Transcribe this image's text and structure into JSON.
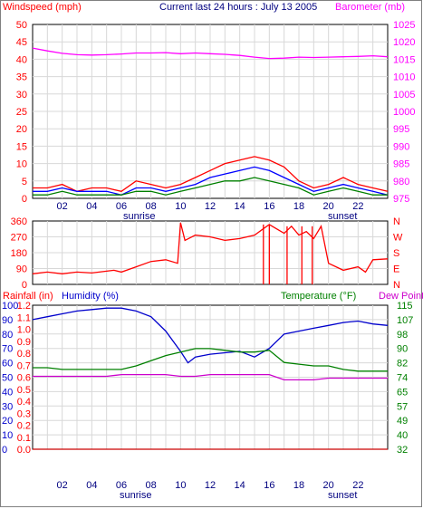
{
  "chart_data": [
    {
      "panel": "wind-barometer",
      "type": "line",
      "title": "Current last 24 hours : July 13 2005",
      "left_axis_label": "Windspeed (mph)",
      "right_axis_label": "Barometer (mb)",
      "left_ticks": [
        "0",
        "5",
        "10",
        "15",
        "20",
        "25",
        "30",
        "35",
        "40",
        "45",
        "50"
      ],
      "right_ticks": [
        "975",
        "980",
        "985",
        "990",
        "995",
        "1000",
        "1005",
        "1010",
        "1015",
        "1020",
        "1025"
      ],
      "ylim_left": [
        0,
        50
      ],
      "ylim_right": [
        975,
        1025
      ],
      "series": [
        {
          "name": "Windspeed (mph)",
          "axis": "left",
          "color": "#ff0000",
          "x": [
            0,
            1,
            2,
            3,
            4,
            5,
            6,
            7,
            8,
            9,
            10,
            11,
            12,
            13,
            14,
            15,
            16,
            17,
            18,
            19,
            20,
            21,
            22,
            23,
            24
          ],
          "values": [
            3,
            3,
            4,
            2,
            3,
            3,
            2,
            5,
            4,
            3,
            4,
            6,
            8,
            10,
            11,
            12,
            11,
            9,
            5,
            3,
            4,
            6,
            4,
            3,
            2
          ]
        },
        {
          "name": "Windspeed (mph)",
          "axis": "left",
          "color": "#0000ff",
          "x": [
            0,
            1,
            2,
            3,
            4,
            5,
            6,
            7,
            8,
            9,
            10,
            11,
            12,
            13,
            14,
            15,
            16,
            17,
            18,
            19,
            20,
            21,
            22,
            23,
            24
          ],
          "values": [
            2,
            2,
            3,
            2,
            2,
            2,
            1,
            3,
            3,
            2,
            3,
            4,
            6,
            7,
            8,
            9,
            8,
            6,
            4,
            2,
            3,
            4,
            3,
            2,
            1
          ]
        },
        {
          "name": "Windspeed (mph)",
          "axis": "left",
          "color": "#008000",
          "x": [
            0,
            1,
            2,
            3,
            4,
            5,
            6,
            7,
            8,
            9,
            10,
            11,
            12,
            13,
            14,
            15,
            16,
            17,
            18,
            19,
            20,
            21,
            22,
            23,
            24
          ],
          "values": [
            1,
            1,
            2,
            1,
            1,
            1,
            1,
            2,
            2,
            1,
            2,
            3,
            4,
            5,
            5,
            6,
            5,
            4,
            3,
            1,
            2,
            3,
            2,
            1,
            1
          ]
        },
        {
          "name": "Barometer (mb)",
          "axis": "right",
          "color": "#ff00ff",
          "x": [
            0,
            1,
            2,
            3,
            4,
            5,
            6,
            7,
            8,
            9,
            10,
            11,
            12,
            13,
            14,
            15,
            16,
            17,
            18,
            19,
            20,
            21,
            22,
            23,
            24
          ],
          "values": [
            1018.2,
            1017.4,
            1016.7,
            1016.3,
            1016.2,
            1016.3,
            1016.5,
            1016.8,
            1016.8,
            1016.9,
            1016.6,
            1016.8,
            1016.6,
            1016.4,
            1016.1,
            1015.6,
            1015.2,
            1015.3,
            1015.6,
            1015.5,
            1015.6,
            1015.7,
            1015.8,
            1016.0,
            1015.7
          ]
        }
      ],
      "x_ticks": [
        "02",
        "04",
        "06",
        "08",
        "10",
        "12",
        "14",
        "16",
        "18",
        "20",
        "22"
      ],
      "x_markers": [
        "sunrise",
        "sunset"
      ]
    },
    {
      "panel": "wind-direction",
      "type": "line",
      "left_ticks": [
        "0",
        "90",
        "180",
        "270",
        "360"
      ],
      "right_ticks": [
        "N",
        "E",
        "S",
        "W",
        "N"
      ],
      "ylim": [
        0,
        360
      ],
      "series": [
        {
          "name": "Wind direction",
          "color": "#ff0000",
          "x": [
            0,
            1,
            2,
            3,
            4,
            5,
            5.5,
            6,
            7,
            8,
            9,
            9.8,
            10,
            10.3,
            11,
            12,
            13,
            14,
            15,
            15.5,
            16,
            17,
            17.5,
            18,
            18.5,
            19,
            19.5,
            20,
            21,
            22,
            22.5,
            23,
            24
          ],
          "values": [
            60,
            70,
            60,
            70,
            65,
            75,
            80,
            70,
            100,
            130,
            140,
            120,
            350,
            250,
            280,
            270,
            250,
            260,
            280,
            310,
            340,
            290,
            330,
            280,
            300,
            260,
            330,
            120,
            80,
            100,
            70,
            140,
            145
          ]
        }
      ],
      "spikes": [
        {
          "x": 15.6,
          "values": [
            0,
            340
          ]
        },
        {
          "x": 16.0,
          "values": [
            0,
            340
          ]
        },
        {
          "x": 17.2,
          "values": [
            0,
            330
          ]
        },
        {
          "x": 18.2,
          "values": [
            0,
            330
          ]
        },
        {
          "x": 18.9,
          "values": [
            0,
            330
          ]
        }
      ]
    },
    {
      "panel": "humidity-temperature-rain",
      "type": "line",
      "labels": {
        "rainfall": "Rainfall (in)",
        "humidity": "Humidity (%)",
        "temperature": "Temperature (°F)",
        "dewpoint": "Dew Point"
      },
      "humidity_ticks": [
        "0",
        "10",
        "20",
        "30",
        "40",
        "50",
        "60",
        "70",
        "80",
        "90",
        "100"
      ],
      "rain_ticks": [
        "0.0",
        "0.1",
        "0.2",
        "0.3",
        "0.4",
        "0.5",
        "0.6",
        "0.7",
        "0.8",
        "0.9",
        "1.0",
        "1.1",
        "1.2"
      ],
      "temp_ticks": [
        "32",
        "40",
        "49",
        "57",
        "65",
        "74",
        "82",
        "90",
        "98",
        "107",
        "115"
      ],
      "ylim_humidity": [
        0,
        100
      ],
      "ylim_temperature": [
        32,
        115
      ],
      "series": [
        {
          "name": "Humidity (%)",
          "axis": "humidity",
          "color": "#0000cc",
          "x": [
            0,
            1,
            2,
            3,
            4,
            5,
            6,
            7,
            8,
            9,
            10,
            10.5,
            11,
            12,
            13,
            14,
            15,
            16,
            17,
            18,
            19,
            20,
            21,
            22,
            23,
            24
          ],
          "values": [
            90,
            92,
            94,
            96,
            97,
            98,
            98,
            96,
            92,
            82,
            68,
            60,
            64,
            66,
            67,
            68,
            64,
            70,
            80,
            82,
            84,
            86,
            88,
            89,
            87,
            86
          ]
        },
        {
          "name": "Temperature (°F)",
          "axis": "temperature",
          "color": "#008000",
          "x": [
            0,
            1,
            2,
            3,
            4,
            5,
            6,
            7,
            8,
            9,
            10,
            11,
            12,
            13,
            14,
            15,
            16,
            17,
            18,
            19,
            20,
            21,
            22,
            23,
            24
          ],
          "values": [
            79,
            79,
            78,
            78,
            78,
            78,
            78,
            80,
            83,
            86,
            88,
            90,
            90,
            89,
            88,
            88,
            89,
            82,
            81,
            80,
            80,
            78,
            77,
            77,
            77
          ]
        },
        {
          "name": "Dew Point",
          "axis": "temperature",
          "color": "#cc00cc",
          "x": [
            0,
            1,
            2,
            3,
            4,
            5,
            6,
            7,
            8,
            9,
            10,
            11,
            12,
            13,
            14,
            15,
            16,
            17,
            18,
            19,
            20,
            21,
            22,
            23,
            24
          ],
          "values": [
            74,
            74,
            74,
            74,
            74,
            74,
            75,
            75,
            75,
            75,
            74,
            74,
            75,
            75,
            75,
            75,
            75,
            72,
            72,
            72,
            73,
            73,
            73,
            73,
            73
          ]
        },
        {
          "name": "Rainfall (in)",
          "axis": "rain",
          "color": "#cc0000",
          "x": [
            0,
            24
          ],
          "values": [
            0.0,
            0.0
          ]
        }
      ],
      "x_ticks": [
        "02",
        "04",
        "06",
        "08",
        "10",
        "12",
        "14",
        "16",
        "18",
        "20",
        "22"
      ],
      "x_markers": [
        "sunrise",
        "sunset"
      ]
    }
  ]
}
